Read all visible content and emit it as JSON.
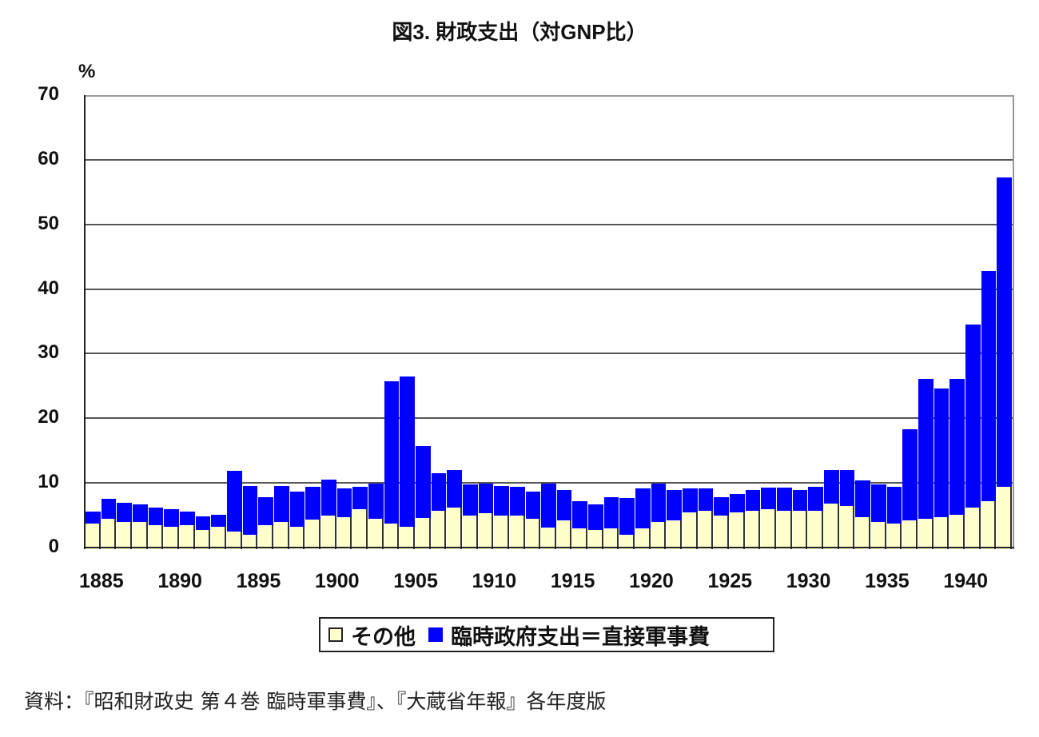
{
  "chart_data": {
    "type": "bar",
    "stacked": true,
    "title": "図3. 財政支出（対GNP比）",
    "ylabel": "%",
    "xlabel": "",
    "ylim": [
      0,
      70
    ],
    "yticks": [
      0,
      10,
      20,
      30,
      40,
      50,
      60,
      70
    ],
    "xticks": [
      1885,
      1890,
      1895,
      1900,
      1905,
      1910,
      1915,
      1920,
      1925,
      1930,
      1935,
      1940
    ],
    "grid": true,
    "legend_position": "bottom",
    "categories": [
      1885,
      1886,
      1887,
      1888,
      1889,
      1890,
      1891,
      1892,
      1893,
      1894,
      1895,
      1896,
      1897,
      1898,
      1899,
      1900,
      1901,
      1902,
      1903,
      1904,
      1905,
      1906,
      1907,
      1908,
      1909,
      1910,
      1911,
      1912,
      1913,
      1914,
      1915,
      1916,
      1917,
      1918,
      1919,
      1920,
      1921,
      1922,
      1923,
      1924,
      1925,
      1926,
      1927,
      1928,
      1929,
      1930,
      1931,
      1932,
      1933,
      1934,
      1935,
      1936,
      1937,
      1938,
      1939,
      1940,
      1941,
      1942,
      1943
    ],
    "series": [
      {
        "name": "その他",
        "color": "#ffffcc",
        "values": [
          3.9,
          4.7,
          4.2,
          4.2,
          3.7,
          3.5,
          3.7,
          3.0,
          3.5,
          2.7,
          2.2,
          3.7,
          4.2,
          3.5,
          4.6,
          5.2,
          4.9,
          6.2,
          4.7,
          3.9,
          3.5,
          4.8,
          5.9,
          6.4,
          5.2,
          5.6,
          5.2,
          5.2,
          4.7,
          3.4,
          4.5,
          3.2,
          3.0,
          3.2,
          2.2,
          3.2,
          4.2,
          4.5,
          5.7,
          5.9,
          5.2,
          5.7,
          5.9,
          6.2,
          5.9,
          5.9,
          5.9,
          7.1,
          6.7,
          4.9,
          4.2,
          3.9,
          4.5,
          4.7,
          4.9,
          5.3,
          6.4,
          7.4,
          9.6
        ]
      },
      {
        "name": "臨時政府支出＝直接軍事費",
        "color": "#0000ff",
        "values": [
          1.9,
          3.1,
          3.0,
          2.7,
          2.7,
          2.7,
          2.1,
          2.1,
          1.8,
          9.4,
          7.6,
          4.3,
          5.6,
          5.4,
          5.0,
          5.6,
          4.5,
          3.4,
          5.4,
          22.1,
          23.2,
          11.2,
          5.9,
          5.9,
          4.8,
          4.6,
          4.6,
          4.5,
          4.2,
          6.8,
          4.7,
          4.2,
          3.9,
          4.9,
          5.7,
          6.2,
          6.0,
          4.7,
          3.7,
          3.5,
          2.8,
          2.8,
          3.2,
          3.3,
          3.6,
          3.2,
          3.7,
          5.2,
          5.5,
          5.7,
          5.8,
          5.7,
          14.0,
          21.7,
          20.0,
          21.1,
          28.3,
          35.7,
          47.9
        ]
      }
    ],
    "totals": [
      5.8,
      7.8,
      7.2,
      6.9,
      6.4,
      6.2,
      5.8,
      5.1,
      5.3,
      12.1,
      9.8,
      8.0,
      9.8,
      8.9,
      9.6,
      10.8,
      9.4,
      9.6,
      10.1,
      26.0,
      26.7,
      16.0,
      11.8,
      12.3,
      10.0,
      10.2,
      9.8,
      9.7,
      8.9,
      10.2,
      9.2,
      7.4,
      6.9,
      8.1,
      7.9,
      9.4,
      10.2,
      9.2,
      9.4,
      9.4,
      8.0,
      8.5,
      9.1,
      9.5,
      9.5,
      9.1,
      9.6,
      12.3,
      12.2,
      10.6,
      10.0,
      9.6,
      18.5,
      26.4,
      24.9,
      26.4,
      34.7,
      43.1,
      57.5
    ]
  },
  "labels": {
    "title": "図3. 財政支出（対GNP比）",
    "unit": "%",
    "legend_other": "その他",
    "legend_military": "臨時政府支出＝直接軍事費",
    "source": "資料：『昭和財政史 第４巻 臨時軍事費』、『大蔵省年報』各年度版"
  }
}
